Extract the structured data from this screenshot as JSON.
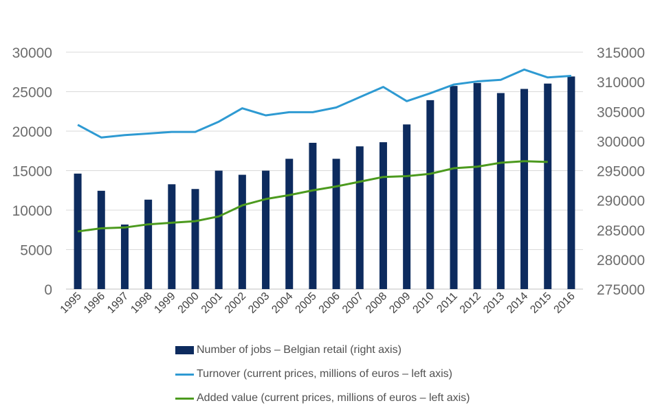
{
  "colors": {
    "jobs_bar": "#0d2b5e",
    "turnover_line": "#2e9ad2",
    "added_value_line": "#4c9a1e",
    "gridline": "#d9d9d9",
    "axis_text": "#6d6d6d"
  },
  "legend": {
    "jobs": "Number of jobs – Belgian retail (right axis)",
    "turnover": "Turnover (current prices, millions of euros – left axis)",
    "added_value": "Added value (current prices, millions of euros – left axis)"
  },
  "chart_data": {
    "type": "bar",
    "categories": [
      "1995",
      "1996",
      "1997",
      "1998",
      "1999",
      "2000",
      "2001",
      "2002",
      "2003",
      "2004",
      "2005",
      "2006",
      "2007",
      "2008",
      "2009",
      "2010",
      "2011",
      "2012",
      "2013",
      "2014",
      "2015",
      "2016"
    ],
    "left_axis": {
      "ylim": [
        0,
        30000
      ],
      "ticks": [
        "0",
        "5000",
        "10000",
        "15000",
        "20000",
        "25000",
        "30000"
      ]
    },
    "right_axis": {
      "ylim": [
        275000,
        315000
      ],
      "ticks": [
        "275000",
        "280000",
        "285000",
        "290000",
        "295000",
        "300000",
        "305000",
        "310000",
        "315000"
      ]
    },
    "grid": true,
    "legend_position": "bottom",
    "series": [
      {
        "name": "Number of jobs – Belgian retail (right axis)",
        "type": "bar",
        "axis": "right",
        "values": [
          294500,
          291600,
          285900,
          290100,
          292700,
          291900,
          295000,
          294300,
          295000,
          297000,
          299700,
          297000,
          299100,
          299800,
          302800,
          306900,
          309300,
          309800,
          308100,
          308800,
          309700,
          310900
        ]
      },
      {
        "name": "Turnover (current prices, millions of euros – left axis)",
        "type": "line",
        "axis": "left",
        "values": [
          20800,
          19200,
          19500,
          19700,
          19900,
          19900,
          21200,
          22900,
          22000,
          22400,
          22400,
          23000,
          24300,
          25600,
          23800,
          24800,
          25900,
          26300,
          26500,
          27800,
          26800,
          27000
        ]
      },
      {
        "name": "Added value (current prices, millions of euros – left axis)",
        "type": "line",
        "axis": "left",
        "values": [
          7300,
          7700,
          7800,
          8200,
          8400,
          8600,
          9200,
          10600,
          11400,
          11900,
          12500,
          13000,
          13600,
          14200,
          14300,
          14600,
          15300,
          15500,
          16000,
          16200,
          16100,
          null
        ]
      }
    ]
  }
}
